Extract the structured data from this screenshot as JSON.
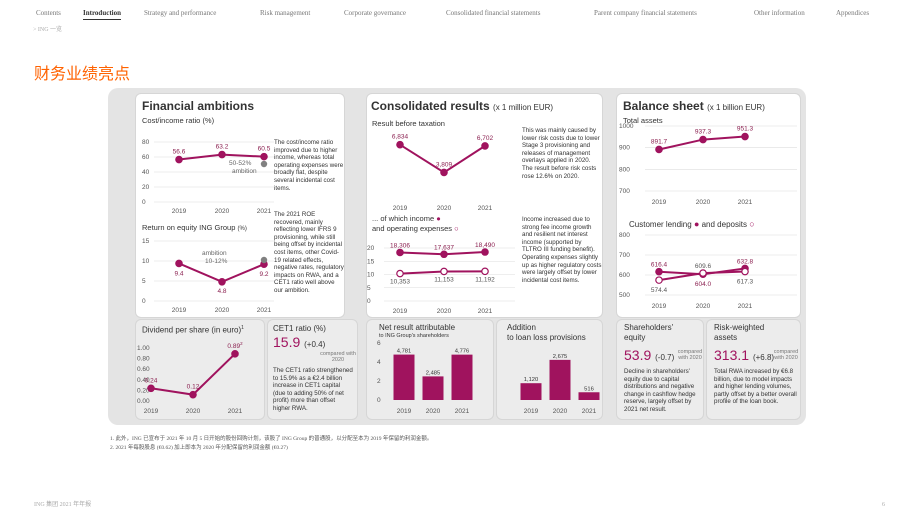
{
  "nav": {
    "items": [
      "Contents",
      "Introduction",
      "Strategy and performance",
      "Risk management",
      "Corporate governance",
      "Consolidated financial statements",
      "Parent company financial statements",
      "Other information",
      "Appendices"
    ],
    "active": "Introduction"
  },
  "breadcrumb": "> ING 一览",
  "page_heading": "财务业绩亮点",
  "financial_ambitions": {
    "title": "Financial ambitions",
    "cost_income": {
      "label": "Cost/income ratio (%)",
      "ambition_label": "50-52%",
      "ambition_word": "ambition",
      "note": "The cost/income ratio improved due to higher income, whereas total operating expenses were broadly flat, despite several incidental cost items."
    },
    "roe": {
      "label": "Return on equity ING Group",
      "label_unit": "(%)",
      "ambition_word": "ambition",
      "ambition_label": "10-12%",
      "note": "The 2021 ROE recovered, mainly reflecting lower IFRS 9 provisioning, while still being offset by incidental cost items, other Covid-19 related effects, negative rates, regulatory impacts on RWA, and a CET1 ratio well above our ambition."
    },
    "dividend": {
      "label": "Dividend per share (in euro)",
      "sup": "1"
    },
    "cet1": {
      "label": "CET1 ratio (%)",
      "value": "15.9",
      "change": "(+0.4)",
      "compared": "compared with 2020",
      "note": "The CET1 ratio strengthened to 15.9% as a €2.4 billion increase in CET1 capital (due to adding 50% of net profit) more than offset higher RWA."
    }
  },
  "consolidated_results": {
    "title": "Consolidated results",
    "unit": "(x 1 million EUR)",
    "result_before_tax": {
      "label": "Result before taxation",
      "note": "This was mainly caused by lower risk costs due to lower Stage 3 provisioning and releases of management overlays applied in 2020. The result before risk costs rose 12.6% on 2020."
    },
    "income_opex": {
      "label_1": "... of which income",
      "label_2": "and operating expenses",
      "note": "Income increased due to strong fee income growth and resilient net interest income (supported by TLTRO III funding benefit). Operating expenses slightly up as higher regulatory costs were largely offset by lower incidental cost items."
    },
    "net_result": {
      "label": "Net result attributable",
      "sublabel": "to ING Group's shareholders"
    },
    "loan_loss": {
      "label_1": "Addition",
      "label_2": "to loan loss provisions"
    }
  },
  "balance_sheet": {
    "title": "Balance sheet",
    "unit": "(x 1 billion EUR)",
    "total_assets": {
      "label": "Total assets"
    },
    "lending_deposits": {
      "label_1": "Customer lending",
      "label_2": "and deposits"
    },
    "equity": {
      "label_1": "Shareholders'",
      "label_2": "equity",
      "value": "53.9",
      "change": "(-0.7)",
      "compared": "compared with 2020",
      "note": "Decline in shareholders' equity due to capital distributions and negative change in cashflow hedge reserve, largely offset by 2021 net result."
    },
    "rwa": {
      "label_1": "Risk-weighted",
      "label_2": "assets",
      "value": "313.1",
      "change": "(+6.8)",
      "compared": "compared with 2020",
      "note": "Total RWA increased by €6.8 billion, due to model impacts and higher lending volumes, partly offset by a better overall profile of the loan book."
    }
  },
  "footnotes": [
    "1. 此外，ING 已宣布于 2021 年 10 月 5 日开始的股份回购计划，该股了 ING Group 的普通股，以分配至本为 2019 年保留的利润金额。",
    "2. 2021 年每股股息 (€0.62) 加上即本为 2020 年分配保留的利润金额 (€0.27)"
  ],
  "page_footer_left": "ING 集团 2021 年年报",
  "page_number": "6",
  "colors": {
    "accent": "#ff6200",
    "series": "#a0135e",
    "gray_dot": "#808080"
  },
  "chart_data": [
    {
      "id": "cost_income",
      "type": "line",
      "x": [
        "2019",
        "2020",
        "2021"
      ],
      "values": [
        56.6,
        63.2,
        60.5
      ],
      "labels": [
        "56.6",
        "63.2",
        "60.5"
      ],
      "ylim": [
        0,
        80
      ],
      "yticks": [
        0,
        20,
        40,
        60,
        80
      ]
    },
    {
      "id": "roe",
      "type": "line",
      "x": [
        "2019",
        "2020",
        "2021"
      ],
      "values": [
        9.4,
        4.8,
        9.2
      ],
      "labels": [
        "9.4",
        "4.8",
        "9.2"
      ],
      "ylim": [
        0,
        15
      ],
      "yticks": [
        0,
        5,
        10,
        15
      ]
    },
    {
      "id": "dividend",
      "type": "line",
      "x": [
        "2019",
        "2020",
        "2021"
      ],
      "values": [
        0.24,
        0.12,
        0.89
      ],
      "labels": [
        "0.24",
        "0.12",
        "0.89"
      ],
      "label_sup": [
        "",
        "",
        "2"
      ],
      "ylim": [
        0,
        1
      ],
      "yticks": [
        "0.00",
        "0.20",
        "0.40",
        "0.60",
        "0.80",
        "1.00"
      ]
    },
    {
      "id": "result_before_tax",
      "type": "line",
      "x": [
        "2019",
        "2020",
        "2021"
      ],
      "values": [
        6834,
        3809,
        6702
      ],
      "labels": [
        "6,834",
        "3,809",
        "6,702"
      ]
    },
    {
      "id": "income_opex",
      "type": "line",
      "x": [
        "2019",
        "2020",
        "2021"
      ],
      "series": [
        {
          "name": "income",
          "values": [
            18306,
            17637,
            18490
          ],
          "labels": [
            "18,306",
            "17,637",
            "18,490"
          ]
        },
        {
          "name": "operating expenses",
          "values": [
            10353,
            11153,
            11192
          ],
          "labels": [
            "10,353",
            "11,153",
            "11,192"
          ]
        }
      ],
      "ylim": [
        0,
        20000
      ],
      "yticks": [
        "0",
        "5",
        "10",
        "15",
        "20"
      ]
    },
    {
      "id": "net_result",
      "type": "bar",
      "categories": [
        "2019",
        "2020",
        "2021"
      ],
      "values": [
        4781,
        2485,
        4776
      ],
      "labels": [
        "4,781",
        "2,485",
        "4,776"
      ],
      "ylim": [
        0,
        6000
      ],
      "yticks": [
        "0",
        "2",
        "4",
        "6"
      ]
    },
    {
      "id": "loan_loss",
      "type": "bar",
      "categories": [
        "2019",
        "2020",
        "2021"
      ],
      "values": [
        1120,
        2675,
        516
      ],
      "labels": [
        "1,120",
        "2,675",
        "516"
      ]
    },
    {
      "id": "total_assets",
      "type": "line",
      "x": [
        "2019",
        "2020",
        "2021"
      ],
      "values": [
        891.7,
        937.3,
        951.3
      ],
      "labels": [
        "891.7",
        "937.3",
        "951.3"
      ],
      "ylim": [
        700,
        1000
      ],
      "yticks": [
        700,
        800,
        900,
        1000
      ]
    },
    {
      "id": "lending_deposits",
      "type": "line",
      "x": [
        "2019",
        "2020",
        "2021"
      ],
      "series": [
        {
          "name": "Customer lending",
          "values": [
            616.4,
            604.0,
            632.8
          ],
          "labels": [
            "616.4",
            "604.0",
            "632.8"
          ]
        },
        {
          "name": "deposits",
          "values": [
            574.4,
            609.6,
            617.3
          ],
          "labels": [
            "574.4",
            "609.6",
            "617.3"
          ]
        }
      ],
      "ylim": [
        500,
        800
      ],
      "yticks": [
        500,
        600,
        700,
        800
      ]
    }
  ]
}
